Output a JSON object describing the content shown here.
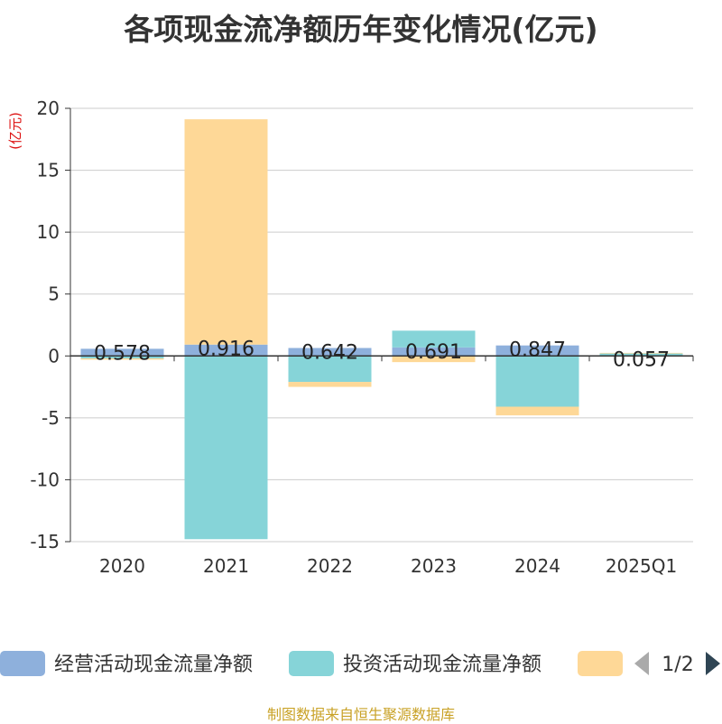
{
  "chart_data": {
    "type": "bar",
    "stacked": true,
    "title": "各项现金流净额历年变化情况(亿元)",
    "ylabel": "(亿元)",
    "xlabel": "",
    "categories": [
      "2020",
      "2021",
      "2022",
      "2023",
      "2024",
      "2025Q1"
    ],
    "ylim": [
      -15,
      20
    ],
    "yticks": [
      20,
      15,
      10,
      5,
      0,
      -5,
      -10,
      -15
    ],
    "grid": true,
    "series": [
      {
        "name": "经营活动现金流量净额",
        "color": "#8eb0dc",
        "values": [
          0.578,
          0.916,
          0.642,
          0.691,
          0.847,
          0.057
        ],
        "labels": [
          "0.578",
          "0.916",
          "0.642",
          "0.691",
          "0.847",
          "0.057"
        ]
      },
      {
        "name": "投资活动现金流量净额",
        "color": "#86d4d8",
        "values": [
          -0.2,
          -14.8,
          -2.1,
          1.35,
          -4.1,
          0.14
        ]
      },
      {
        "name": "",
        "color": "#fed897",
        "values": [
          -0.1,
          18.2,
          -0.4,
          -0.5,
          -0.7,
          0.05
        ]
      }
    ],
    "legend": {
      "placement": "bottom",
      "page": "1/2"
    }
  },
  "footer": {
    "source": "制图数据来自恒生聚源数据库"
  }
}
